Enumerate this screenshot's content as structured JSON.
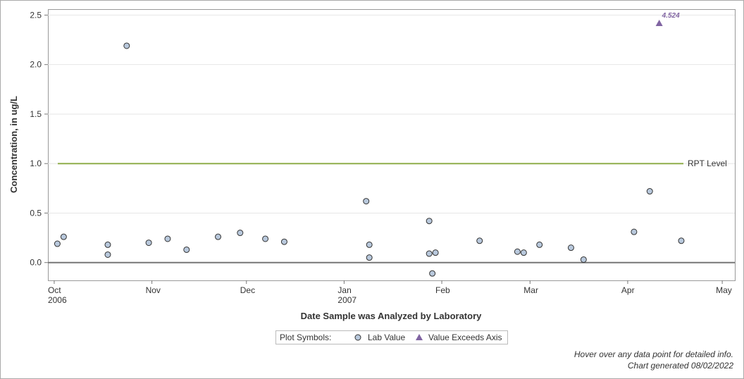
{
  "chart_data": {
    "type": "scatter",
    "x_label": "Date Sample was Analyzed by Laboratory",
    "y_label": "Concentration, in ug/L",
    "xlim": [
      "2006-09-29",
      "2007-05-05"
    ],
    "ylim": [
      -0.18,
      2.56
    ],
    "xticks": [
      {
        "value": "2006-10-01",
        "label": "Oct\n2006"
      },
      {
        "value": "2006-11-01",
        "label": "Nov"
      },
      {
        "value": "2006-12-01",
        "label": "Dec"
      },
      {
        "value": "2007-01-01",
        "label": "Jan\n2007"
      },
      {
        "value": "2007-02-01",
        "label": "Feb"
      },
      {
        "value": "2007-03-01",
        "label": "Mar"
      },
      {
        "value": "2007-04-01",
        "label": "Apr"
      },
      {
        "value": "2007-05-01",
        "label": "May"
      }
    ],
    "yticks": [
      {
        "value": 0,
        "label": "0.0"
      },
      {
        "value": 0.5,
        "label": "0.5"
      },
      {
        "value": 1,
        "label": "1.0"
      },
      {
        "value": 1.5,
        "label": "1.5"
      },
      {
        "value": 2,
        "label": "2.0"
      },
      {
        "value": 2.5,
        "label": "2.5"
      }
    ],
    "grid": true,
    "reference_line": {
      "label": "RPT Level",
      "value": 1,
      "color": "#8fae4a"
    },
    "legend_title": "Plot Symbols:",
    "series": [
      {
        "name": "Lab Value",
        "color": "#b8c8dc",
        "x": [
          "2006-10-02",
          "2006-10-04",
          "2006-10-18",
          "2006-10-18",
          "2006-10-24",
          "2006-10-31",
          "2006-11-06",
          "2006-11-12",
          "2006-11-22",
          "2006-11-29",
          "2006-12-07",
          "2006-12-13",
          "2007-01-08",
          "2007-01-09",
          "2007-01-09",
          "2007-01-28",
          "2007-01-28",
          "2007-01-30",
          "2007-01-29",
          "2007-02-13",
          "2007-02-25",
          "2007-02-27",
          "2007-03-04",
          "2007-03-14",
          "2007-03-18",
          "2007-04-03",
          "2007-04-08",
          "2007-04-18"
        ],
        "values": [
          0.19,
          0.26,
          0.18,
          0.08,
          2.19,
          0.2,
          0.24,
          0.13,
          0.26,
          0.3,
          0.24,
          0.21,
          0.62,
          0.18,
          0.05,
          0.42,
          0.09,
          0.1,
          -0.11,
          0.22,
          0.11,
          0.1,
          0.18,
          0.15,
          0.03,
          0.31,
          0.72,
          0.22
        ]
      },
      {
        "name": "Value Exceeds Axis",
        "color": "#8064a2",
        "x": [
          "2007-04-11"
        ],
        "values": [
          4.524
        ],
        "value_labels": [
          "4.524"
        ]
      }
    ],
    "footnotes": [
      "Hover over any data point for detailed info.",
      "Chart generated 08/02/2022"
    ]
  }
}
